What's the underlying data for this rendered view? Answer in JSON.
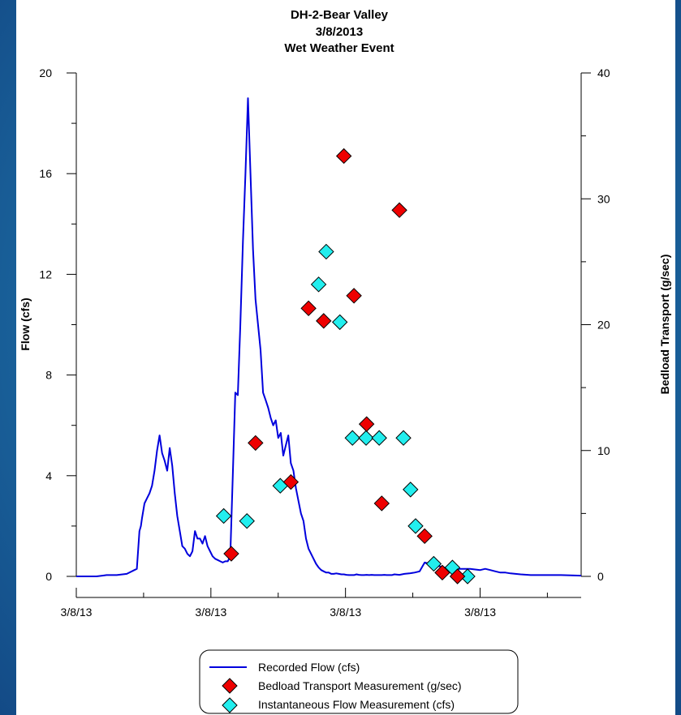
{
  "chart_data": {
    "type": "line",
    "title": [
      "DH-2-Bear Valley",
      "3/8/2013",
      "Wet Weather Event"
    ],
    "ylabel": "Flow (cfs)",
    "y2label": "Bedload Transport (g/sec)",
    "xlim": [
      0,
      1
    ],
    "ylim": [
      0,
      20
    ],
    "y2lim": [
      0,
      40
    ],
    "y_ticks": [
      0,
      4,
      8,
      12,
      16,
      20
    ],
    "y2_ticks": [
      0,
      10,
      20,
      30,
      40
    ],
    "x_tick_labels": [
      "3/8/13",
      "3/8/13",
      "3/8/13",
      "3/8/13",
      "3/8/13"
    ],
    "x_tick_positions": [
      0,
      0.2667,
      0.5333,
      0.8,
      1.0667
    ],
    "grid": false,
    "legend_position": "bottom-center",
    "series": [
      {
        "name": "Recorded Flow (cfs)",
        "kind": "line",
        "axis": "left",
        "color": "#0000dd",
        "x": [
          0,
          0.02,
          0.04,
          0.06,
          0.08,
          0.1,
          0.12,
          0.125,
          0.128,
          0.13,
          0.135,
          0.14,
          0.145,
          0.15,
          0.155,
          0.16,
          0.165,
          0.17,
          0.175,
          0.18,
          0.185,
          0.19,
          0.195,
          0.2,
          0.205,
          0.21,
          0.215,
          0.22,
          0.225,
          0.23,
          0.235,
          0.24,
          0.245,
          0.25,
          0.255,
          0.26,
          0.265,
          0.27,
          0.275,
          0.28,
          0.285,
          0.29,
          0.295,
          0.3,
          0.305,
          0.31,
          0.315,
          0.32,
          0.325,
          0.33,
          0.335,
          0.34,
          0.345,
          0.35,
          0.355,
          0.36,
          0.365,
          0.37,
          0.375,
          0.38,
          0.385,
          0.39,
          0.395,
          0.4,
          0.405,
          0.41,
          0.415,
          0.42,
          0.425,
          0.43,
          0.435,
          0.44,
          0.445,
          0.45,
          0.455,
          0.46,
          0.465,
          0.47,
          0.475,
          0.48,
          0.485,
          0.49,
          0.495,
          0.5,
          0.505,
          0.51,
          0.515,
          0.52,
          0.525,
          0.53,
          0.535,
          0.54,
          0.545,
          0.55,
          0.555,
          0.56,
          0.565,
          0.57,
          0.575,
          0.58,
          0.585,
          0.59,
          0.595,
          0.6,
          0.605,
          0.61,
          0.615,
          0.62,
          0.625,
          0.63,
          0.64,
          0.65,
          0.66,
          0.67,
          0.68,
          0.69,
          0.7,
          0.72,
          0.74,
          0.76,
          0.78,
          0.8,
          0.81,
          0.82,
          0.83,
          0.84,
          0.85,
          0.86,
          0.87,
          0.88,
          0.9,
          0.92,
          0.94,
          0.96,
          0.98,
          1.0
        ],
        "y": [
          0,
          0,
          0,
          0.05,
          0.05,
          0.1,
          0.3,
          1.8,
          2.0,
          2.3,
          2.9,
          3.1,
          3.3,
          3.6,
          4.2,
          5.0,
          5.6,
          4.9,
          4.6,
          4.2,
          5.1,
          4.4,
          3.3,
          2.4,
          1.8,
          1.2,
          1.1,
          0.9,
          0.8,
          1.0,
          1.8,
          1.5,
          1.5,
          1.3,
          1.6,
          1.2,
          1.0,
          0.8,
          0.7,
          0.65,
          0.6,
          0.55,
          0.6,
          0.6,
          0.8,
          4.0,
          7.3,
          7.2,
          10.0,
          13.3,
          16.0,
          19.0,
          16.0,
          13.0,
          11.0,
          10.0,
          9.0,
          7.3,
          7.0,
          6.7,
          6.3,
          6.0,
          6.2,
          5.5,
          5.7,
          4.8,
          5.2,
          5.6,
          4.5,
          4.2,
          3.5,
          3.0,
          2.5,
          2.2,
          1.5,
          1.1,
          0.9,
          0.7,
          0.5,
          0.35,
          0.25,
          0.2,
          0.15,
          0.15,
          0.1,
          0.1,
          0.12,
          0.1,
          0.08,
          0.08,
          0.06,
          0.05,
          0.05,
          0.05,
          0.08,
          0.06,
          0.05,
          0.05,
          0.06,
          0.05,
          0.06,
          0.05,
          0.05,
          0.05,
          0.05,
          0.06,
          0.05,
          0.05,
          0.05,
          0.08,
          0.06,
          0.1,
          0.12,
          0.15,
          0.2,
          0.55,
          0.5,
          0.4,
          0.3,
          0.3,
          0.3,
          0.25,
          0.3,
          0.25,
          0.2,
          0.15,
          0.15,
          0.12,
          0.1,
          0.08,
          0.05,
          0.05,
          0.05,
          0.05,
          0.04,
          0.03
        ]
      },
      {
        "name": "Bedload Transport Measurement (g/sec)",
        "kind": "marker",
        "axis": "right",
        "color": "#ee0000",
        "x": [
          0.307,
          0.355,
          0.425,
          0.46,
          0.49,
          0.53,
          0.55,
          0.575,
          0.605,
          0.64,
          0.69,
          0.725,
          0.755
        ],
        "y": [
          1.8,
          10.6,
          7.5,
          21.3,
          20.3,
          33.4,
          22.3,
          12.1,
          5.8,
          29.1,
          3.2,
          0.3,
          0
        ]
      },
      {
        "name": "Instantaneous Flow Measurement (cfs)",
        "kind": "marker",
        "axis": "left",
        "color": "#22eeee",
        "x": [
          0.292,
          0.338,
          0.404,
          0.48,
          0.495,
          0.522,
          0.547,
          0.574,
          0.6,
          0.662,
          0.648,
          0.672,
          0.708,
          0.745,
          0.775
        ],
        "y": [
          2.4,
          2.2,
          3.6,
          11.6,
          12.9,
          10.1,
          5.5,
          5.5,
          5.5,
          3.45,
          5.5,
          2.0,
          0.5,
          0.35,
          0.0
        ]
      }
    ]
  }
}
